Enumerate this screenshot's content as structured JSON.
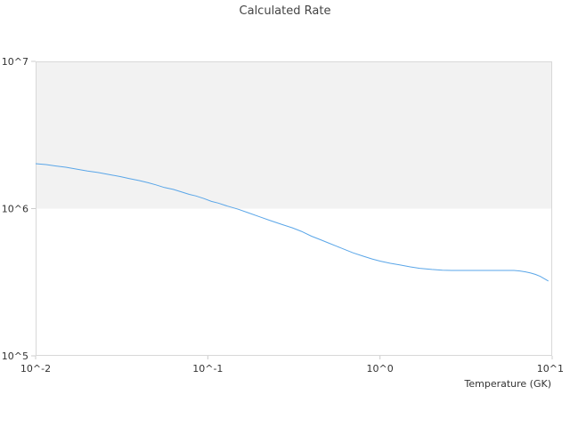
{
  "chart_data": {
    "type": "line",
    "title": "Calculated Rate",
    "xlabel": "Temperature (GK)",
    "ylabel": "",
    "x_scale": "log",
    "y_scale": "log",
    "xlim": [
      0.01,
      10
    ],
    "ylim": [
      100000,
      10000000
    ],
    "x_tick_values": [
      0.01,
      0.1,
      1,
      10
    ],
    "x_tick_labels": [
      "10^-2",
      "10^-1",
      "10^0",
      "10^1"
    ],
    "y_tick_values": [
      100000,
      1000000,
      10000000
    ],
    "y_tick_labels": [
      "10^5",
      "10^6",
      "10^7"
    ],
    "shaded_band": {
      "from": 1000000,
      "to": 10000000,
      "color": "#f2f2f2"
    },
    "grid": false,
    "colors": {
      "line": "#5aa6e8",
      "band": "#f2f2f2",
      "plot_border": "#d8d8d8"
    },
    "series": [
      {
        "x": [
          0.01,
          0.0115,
          0.013,
          0.015,
          0.017,
          0.02,
          0.023,
          0.027,
          0.031,
          0.035,
          0.04,
          0.045,
          0.05,
          0.056,
          0.063,
          0.07,
          0.078,
          0.085,
          0.095,
          0.105,
          0.115,
          0.13,
          0.15,
          0.17,
          0.2,
          0.23,
          0.27,
          0.31,
          0.35,
          0.4,
          0.45,
          0.5,
          0.56,
          0.63,
          0.7,
          0.8,
          0.9,
          1.0,
          1.15,
          1.3,
          1.5,
          1.7,
          2.0,
          2.3,
          2.6,
          3.0,
          3.5,
          4.0,
          4.5,
          5.0,
          5.5,
          6.0,
          6.5,
          7.0,
          7.5,
          8.0,
          8.5,
          9.0,
          9.5
        ],
        "y": [
          2020000,
          1990000,
          1950000,
          1910000,
          1860000,
          1800000,
          1760000,
          1700000,
          1650000,
          1600000,
          1550000,
          1500000,
          1450000,
          1390000,
          1350000,
          1300000,
          1250000,
          1220000,
          1170000,
          1120000,
          1090000,
          1040000,
          990000,
          940000,
          880000,
          830000,
          780000,
          740000,
          700000,
          650000,
          615000,
          585000,
          555000,
          525000,
          500000,
          475000,
          455000,
          440000,
          425000,
          415000,
          402000,
          393000,
          386000,
          382000,
          380000,
          380000,
          380000,
          380000,
          380000,
          380000,
          380000,
          380000,
          377000,
          372000,
          365000,
          357000,
          347000,
          334000,
          322000
        ]
      }
    ]
  }
}
